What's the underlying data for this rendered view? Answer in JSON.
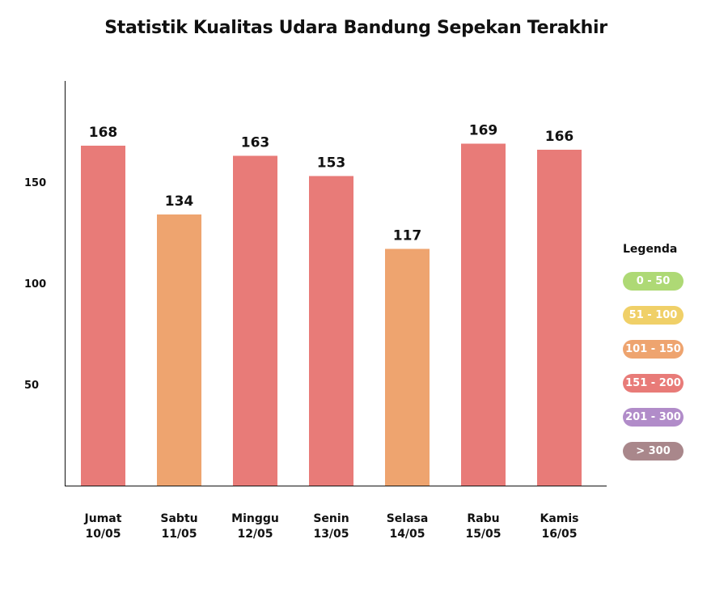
{
  "chart_data": {
    "type": "bar",
    "title": "Statistik Kualitas Udara Bandung Sepekan Terakhir",
    "categories": [
      [
        "Jumat",
        "10/05"
      ],
      [
        "Sabtu",
        "11/05"
      ],
      [
        "Minggu",
        "12/05"
      ],
      [
        "Senin",
        "13/05"
      ],
      [
        "Selasa",
        "14/05"
      ],
      [
        "Rabu",
        "15/05"
      ],
      [
        "Kamis",
        "16/05"
      ]
    ],
    "values": [
      168,
      134,
      163,
      153,
      117,
      169,
      166
    ],
    "ylim": [
      0,
      200
    ],
    "yticks": [
      50,
      100,
      150
    ],
    "colors": [
      "#e87b78",
      "#eea46f",
      "#e87b78",
      "#e87b78",
      "#eea46f",
      "#e87b78",
      "#e87b78"
    ],
    "legend": {
      "title": "Legenda",
      "items": [
        {
          "label": "0 - 50",
          "color": "#aed975"
        },
        {
          "label": "51 - 100",
          "color": "#f0d068"
        },
        {
          "label": "101 - 150",
          "color": "#eea46f"
        },
        {
          "label": "151 - 200",
          "color": "#e87b78"
        },
        {
          "label": "201 - 300",
          "color": "#b18cc9"
        },
        {
          "label": "> 300",
          "color": "#a9878b"
        }
      ]
    }
  }
}
